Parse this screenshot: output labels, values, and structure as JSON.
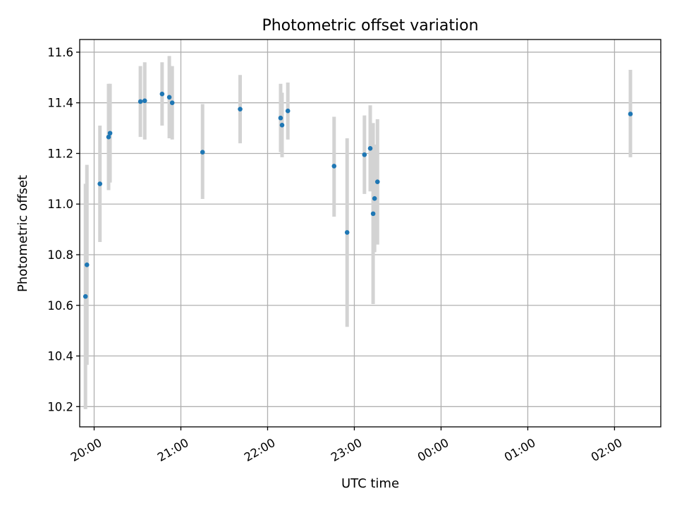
{
  "chart_data": {
    "type": "scatter",
    "title": "Photometric offset variation",
    "xlabel": "UTC time",
    "ylabel": "Photometric offset",
    "x_axis_type": "time",
    "x_tick_labels": [
      "20:00",
      "21:00",
      "22:00",
      "23:00",
      "00:00",
      "01:00",
      "02:00"
    ],
    "y_ticks": [
      10.2,
      10.4,
      10.6,
      10.8,
      11.0,
      11.2,
      11.4,
      11.6
    ],
    "y_tick_labels": [
      "10.2",
      "10.4",
      "10.6",
      "10.8",
      "11.0",
      "11.2",
      "11.4",
      "11.6"
    ],
    "xlim": [
      "19:50",
      "02:32"
    ],
    "ylim": [
      10.12,
      11.65
    ],
    "grid": true,
    "point_color": "#1f77b4",
    "errorbar_color": "#d3d3d3",
    "points": [
      {
        "t": "19:54",
        "y": 10.635,
        "lo": 10.19,
        "hi": 11.08
      },
      {
        "t": "19:55",
        "y": 10.76,
        "lo": 10.365,
        "hi": 11.155
      },
      {
        "t": "20:04",
        "y": 11.08,
        "lo": 10.85,
        "hi": 11.31
      },
      {
        "t": "20:10",
        "y": 11.265,
        "lo": 11.055,
        "hi": 11.475
      },
      {
        "t": "20:11",
        "y": 11.28,
        "lo": 11.085,
        "hi": 11.475
      },
      {
        "t": "20:32",
        "y": 11.405,
        "lo": 11.265,
        "hi": 11.545
      },
      {
        "t": "20:35",
        "y": 11.408,
        "lo": 11.255,
        "hi": 11.56
      },
      {
        "t": "20:47",
        "y": 11.435,
        "lo": 11.31,
        "hi": 11.56
      },
      {
        "t": "20:52",
        "y": 11.422,
        "lo": 11.26,
        "hi": 11.585
      },
      {
        "t": "20:54",
        "y": 11.4,
        "lo": 11.255,
        "hi": 11.545
      },
      {
        "t": "21:15",
        "y": 11.205,
        "lo": 11.02,
        "hi": 11.395
      },
      {
        "t": "21:41",
        "y": 11.375,
        "lo": 11.24,
        "hi": 11.51
      },
      {
        "t": "22:09",
        "y": 11.34,
        "lo": 11.205,
        "hi": 11.475
      },
      {
        "t": "22:10",
        "y": 11.312,
        "lo": 11.185,
        "hi": 11.44
      },
      {
        "t": "22:14",
        "y": 11.368,
        "lo": 11.255,
        "hi": 11.48
      },
      {
        "t": "22:46",
        "y": 11.15,
        "lo": 10.95,
        "hi": 11.345
      },
      {
        "t": "22:55",
        "y": 10.888,
        "lo": 10.515,
        "hi": 11.26
      },
      {
        "t": "23:07",
        "y": 11.195,
        "lo": 11.04,
        "hi": 11.35
      },
      {
        "t": "23:11",
        "y": 11.22,
        "lo": 11.05,
        "hi": 11.39
      },
      {
        "t": "23:13",
        "y": 10.962,
        "lo": 10.605,
        "hi": 11.32
      },
      {
        "t": "23:14",
        "y": 11.022,
        "lo": 10.81,
        "hi": 11.235
      },
      {
        "t": "23:16",
        "y": 11.088,
        "lo": 10.84,
        "hi": 11.335
      },
      {
        "t": "02:11",
        "y": 11.356,
        "lo": 11.185,
        "hi": 11.53
      }
    ]
  }
}
